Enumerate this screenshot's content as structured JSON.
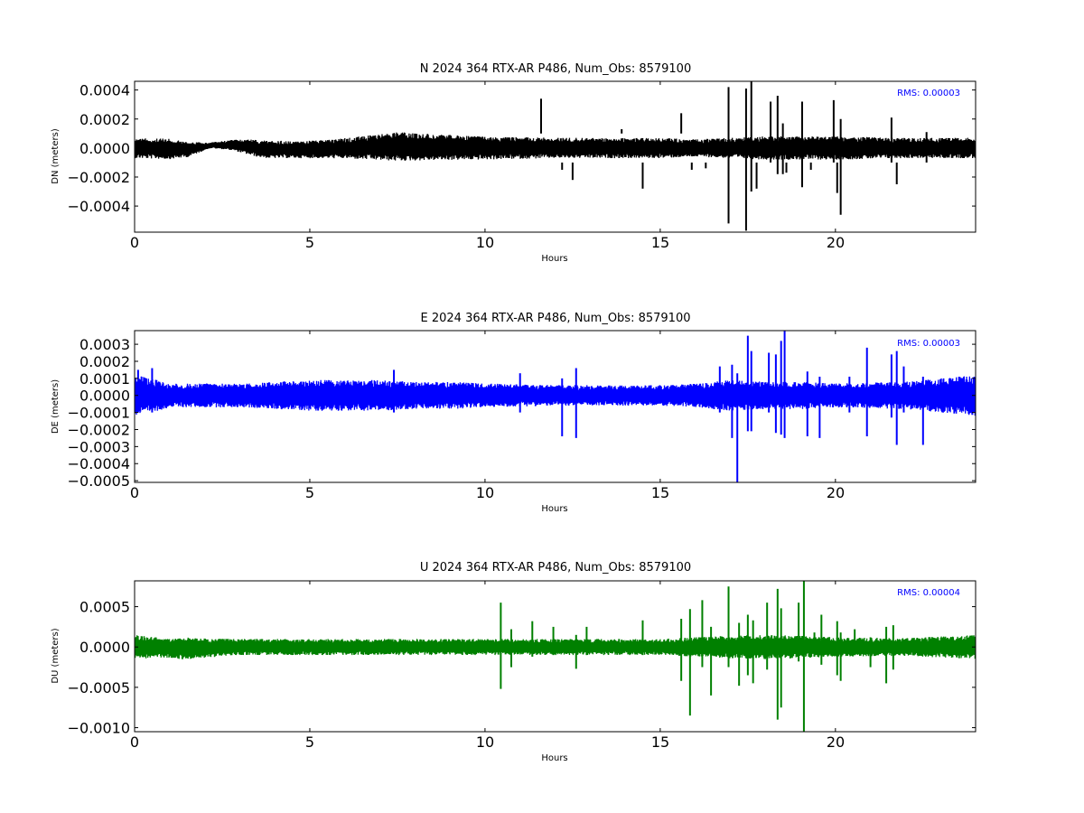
{
  "chart_data": [
    {
      "type": "line",
      "title": "N 2024 364 RTX-AR  P486, Num_Obs: 8579100",
      "xlabel": "Hours",
      "ylabel": "DN (meters)",
      "xlim": [
        0,
        24
      ],
      "ylim": [
        -0.00058,
        0.00046
      ],
      "x_ticks": [
        0,
        5,
        10,
        15,
        20
      ],
      "x_tick_labels": [
        "0",
        "5",
        "10",
        "15",
        "20"
      ],
      "y_ticks": [
        0.0004,
        0.0002,
        0.0,
        -0.0002,
        -0.0004
      ],
      "y_tick_labels": [
        "0.0004",
        "0.0002",
        "0.0000",
        "−0.0002",
        "−0.0004"
      ],
      "rms_text": "RMS:  0.00003",
      "rms_color": "#0000ff",
      "series": [
        {
          "color": "#000000",
          "noise_band": [
            [
              0,
              7e-05
            ],
            [
              1,
              7e-05
            ],
            [
              1.6,
              5e-05
            ],
            [
              2.1,
              2e-05
            ],
            [
              2.6,
              3e-05
            ],
            [
              3.5,
              6e-05
            ],
            [
              5,
              6e-05
            ],
            [
              6,
              7e-05
            ],
            [
              7,
              9e-05
            ],
            [
              7.5,
              0.0001
            ],
            [
              8.5,
              9e-05
            ],
            [
              10,
              8e-05
            ],
            [
              12,
              7e-05
            ],
            [
              14,
              7e-05
            ],
            [
              15,
              7e-05
            ],
            [
              16,
              6e-05
            ],
            [
              17,
              7e-05
            ],
            [
              18,
              8e-05
            ],
            [
              19,
              8e-05
            ],
            [
              20,
              8e-05
            ],
            [
              22,
              7e-05
            ],
            [
              24,
              7e-05
            ]
          ],
          "baseline": [
            [
              0,
              0.0
            ],
            [
              1.5,
              -1e-05
            ],
            [
              2.2,
              2e-05
            ],
            [
              2.8,
              2e-05
            ],
            [
              3.8,
              -1e-05
            ],
            [
              5,
              -1e-05
            ],
            [
              7.5,
              1e-05
            ],
            [
              10,
              0.0
            ],
            [
              24,
              0.0
            ]
          ],
          "spikes": [
            [
              11.6,
              0.00034,
              0.0001
            ],
            [
              12.2,
              -0.00015,
              -0.0001
            ],
            [
              12.5,
              -0.00022,
              -0.0001
            ],
            [
              13.9,
              0.00013,
              0.0001
            ],
            [
              14.5,
              -0.00028,
              -0.0001
            ],
            [
              15.6,
              0.00024,
              0.0001
            ],
            [
              15.9,
              -0.00015,
              -0.0001
            ],
            [
              16.3,
              -0.00014,
              -0.0001
            ],
            [
              16.95,
              0.00042,
              -0.00052
            ],
            [
              17.45,
              0.00041,
              -0.00057
            ],
            [
              17.6,
              0.00046,
              -0.0003
            ],
            [
              17.75,
              -0.00028,
              -0.0001
            ],
            [
              18.15,
              0.00032,
              -0.0001
            ],
            [
              18.35,
              0.00036,
              -0.00018
            ],
            [
              18.5,
              0.00017,
              -0.00018
            ],
            [
              18.6,
              -0.00017,
              -0.0001
            ],
            [
              19.05,
              0.00032,
              -0.00027
            ],
            [
              19.3,
              -0.00015,
              -0.0001
            ],
            [
              19.95,
              0.00033,
              -0.0001
            ],
            [
              20.05,
              -0.00031,
              -0.0001
            ],
            [
              20.15,
              0.0002,
              -0.00046
            ],
            [
              21.6,
              0.00021,
              -0.0001
            ],
            [
              21.75,
              -0.00025,
              -0.0001
            ],
            [
              22.6,
              0.00011,
              -0.0001
            ]
          ]
        }
      ]
    },
    {
      "type": "line",
      "title": "E 2024 364 RTX-AR  P486, Num_Obs: 8579100",
      "xlabel": "Hours",
      "ylabel": "DE (meters)",
      "xlim": [
        0,
        24
      ],
      "ylim": [
        -0.00051,
        0.00038
      ],
      "x_ticks": [
        0,
        5,
        10,
        15,
        20
      ],
      "x_tick_labels": [
        "0",
        "5",
        "10",
        "15",
        "20"
      ],
      "y_ticks": [
        0.0003,
        0.0002,
        0.0001,
        0.0,
        -0.0001,
        -0.0002,
        -0.0003,
        -0.0004,
        -0.0005
      ],
      "y_tick_labels": [
        "0.0003",
        "0.0002",
        "0.0001",
        "0.0000",
        "−0.0001",
        "−0.0002",
        "−0.0003",
        "−0.0004",
        "−0.0005"
      ],
      "rms_text": "RMS:  0.00003",
      "rms_color": "#0000ff",
      "series": [
        {
          "color": "#0000ff",
          "noise_band": [
            [
              0,
              0.00012
            ],
            [
              0.5,
              0.0001
            ],
            [
              1,
              7e-05
            ],
            [
              2,
              7e-05
            ],
            [
              3,
              7e-05
            ],
            [
              4,
              8e-05
            ],
            [
              5,
              9e-05
            ],
            [
              6,
              9e-05
            ],
            [
              7,
              9e-05
            ],
            [
              8,
              8e-05
            ],
            [
              9,
              8e-05
            ],
            [
              10,
              7e-05
            ],
            [
              12,
              6e-05
            ],
            [
              14,
              6e-05
            ],
            [
              15,
              6e-05
            ],
            [
              16,
              7e-05
            ],
            [
              17,
              9e-05
            ],
            [
              18,
              8e-05
            ],
            [
              19,
              8e-05
            ],
            [
              20,
              7e-05
            ],
            [
              22,
              8e-05
            ],
            [
              23,
              0.0001
            ],
            [
              24,
              0.00012
            ]
          ],
          "baseline": [
            [
              0,
              0.0
            ],
            [
              24,
              0.0
            ]
          ],
          "spikes": [
            [
              0.1,
              0.00015,
              -0.0001
            ],
            [
              0.5,
              0.00016,
              -0.0001
            ],
            [
              7.4,
              0.00015,
              -0.0001
            ],
            [
              11.0,
              0.00013,
              -0.0001
            ],
            [
              12.2,
              0.0001,
              -0.00024
            ],
            [
              12.6,
              0.00016,
              -0.00025
            ],
            [
              16.7,
              0.00017,
              -0.0001
            ],
            [
              17.05,
              0.00018,
              -0.00025
            ],
            [
              17.2,
              0.00013,
              -0.00051
            ],
            [
              17.5,
              0.00035,
              -0.00021
            ],
            [
              17.6,
              0.00026,
              -0.00021
            ],
            [
              18.1,
              0.00025,
              -0.0001
            ],
            [
              18.3,
              0.00024,
              -0.00022
            ],
            [
              18.45,
              0.00032,
              -0.00023
            ],
            [
              18.55,
              0.00038,
              -0.00025
            ],
            [
              19.2,
              0.00014,
              -0.00024
            ],
            [
              19.55,
              0.00011,
              -0.00025
            ],
            [
              20.4,
              0.00011,
              -0.0001
            ],
            [
              20.9,
              0.00028,
              -0.00024
            ],
            [
              21.6,
              0.00024,
              -0.00013
            ],
            [
              21.75,
              0.00026,
              -0.00029
            ],
            [
              21.95,
              0.00017,
              -0.0001
            ],
            [
              22.5,
              0.00011,
              -0.00029
            ]
          ]
        }
      ]
    },
    {
      "type": "line",
      "title": "U 2024 364 RTX-AR  P486, Num_Obs: 8579100",
      "xlabel": "Hours",
      "ylabel": "DU (meters)",
      "xlim": [
        0,
        24
      ],
      "ylim": [
        -0.00105,
        0.00082
      ],
      "x_ticks": [
        0,
        5,
        10,
        15,
        20
      ],
      "x_tick_labels": [
        "0",
        "5",
        "10",
        "15",
        "20"
      ],
      "y_ticks": [
        0.0005,
        0.0,
        -0.0005,
        -0.001
      ],
      "y_tick_labels": [
        "0.0005",
        "0.0000",
        "−0.0005",
        "−0.0010"
      ],
      "rms_text": "RMS:  0.00004",
      "rms_color": "#0000ff",
      "series": [
        {
          "color": "#008000",
          "noise_band": [
            [
              0,
              0.00015
            ],
            [
              0.5,
              0.00013
            ],
            [
              1,
              0.00012
            ],
            [
              1.5,
              0.00014
            ],
            [
              2,
              0.00012
            ],
            [
              3,
              0.0001
            ],
            [
              5,
              0.0001
            ],
            [
              7,
              0.0001
            ],
            [
              9,
              0.0001
            ],
            [
              10,
              0.0001
            ],
            [
              12,
              0.0001
            ],
            [
              14,
              0.0001
            ],
            [
              15,
              0.0001
            ],
            [
              16,
              0.00012
            ],
            [
              17,
              0.00014
            ],
            [
              18,
              0.00015
            ],
            [
              19,
              0.00014
            ],
            [
              20,
              0.00012
            ],
            [
              22,
              0.00011
            ],
            [
              23,
              0.00013
            ],
            [
              24,
              0.00015
            ]
          ],
          "baseline": [
            [
              0,
              0.0
            ],
            [
              1.5,
              -2e-05
            ],
            [
              3,
              0.0
            ],
            [
              24,
              0.0
            ]
          ],
          "spikes": [
            [
              10.45,
              0.00055,
              -0.00052
            ],
            [
              10.75,
              0.00022,
              -0.00025
            ],
            [
              11.35,
              0.00032,
              -0.00012
            ],
            [
              11.95,
              0.00025,
              -0.0001
            ],
            [
              12.6,
              0.00015,
              -0.00027
            ],
            [
              12.9,
              0.00025,
              -0.0001
            ],
            [
              14.5,
              0.00033,
              -0.0001
            ],
            [
              15.6,
              0.00035,
              -0.00042
            ],
            [
              15.85,
              0.00047,
              -0.00085
            ],
            [
              16.2,
              0.00058,
              -0.00025
            ],
            [
              16.45,
              0.00025,
              -0.0006
            ],
            [
              16.95,
              0.00075,
              -0.00025
            ],
            [
              17.25,
              0.0003,
              -0.00048
            ],
            [
              17.5,
              0.0004,
              -0.00035
            ],
            [
              17.65,
              0.00033,
              -0.00045
            ],
            [
              18.05,
              0.00055,
              -0.00028
            ],
            [
              18.35,
              0.00072,
              -0.0009
            ],
            [
              18.45,
              0.00048,
              -0.00075
            ],
            [
              18.95,
              0.00055,
              -0.00018
            ],
            [
              19.1,
              0.00082,
              -0.00105
            ],
            [
              19.4,
              0.00018,
              -0.00012
            ],
            [
              19.6,
              0.0004,
              -0.00022
            ],
            [
              20.05,
              0.00032,
              -0.00035
            ],
            [
              20.15,
              0.00018,
              -0.00042
            ],
            [
              20.55,
              0.00022,
              -0.0001
            ],
            [
              21.0,
              0.00012,
              -0.00025
            ],
            [
              21.45,
              0.00025,
              -0.00045
            ],
            [
              21.65,
              0.00027,
              -0.00028
            ],
            [
              23.1,
              0.00012,
              -0.0001
            ]
          ]
        }
      ]
    }
  ]
}
